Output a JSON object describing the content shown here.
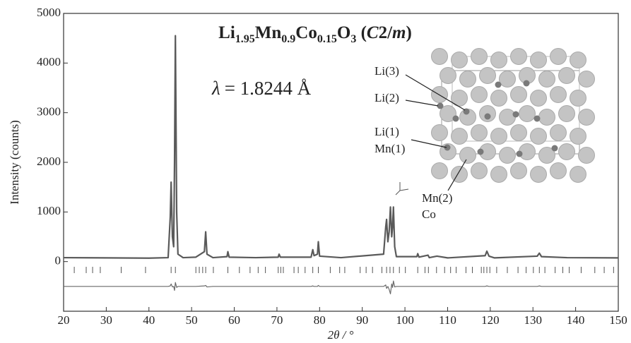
{
  "chart_data": {
    "type": "line",
    "title": [
      {
        "text": "Li"
      },
      {
        "text": "1.95",
        "style": "sub"
      },
      {
        "text": "Mn"
      },
      {
        "text": "0.9",
        "style": "sub"
      },
      {
        "text": "Co"
      },
      {
        "text": "0.15",
        "style": "sub"
      },
      {
        "text": "O"
      },
      {
        "text": "3",
        "style": "sub"
      },
      {
        "text": " ("
      },
      {
        "text": "C",
        "style": "italic"
      },
      {
        "text": "2/"
      },
      {
        "text": "m",
        "style": "italic"
      },
      {
        "text": ")"
      }
    ],
    "wavelength": {
      "symbol": "λ",
      "text": "= 1.8244 Å"
    },
    "site_labels": [
      "Li(3)",
      "Li(2)",
      "Li(1)",
      "Mn(1)",
      "Mn(2)",
      "Co"
    ],
    "x_label": "2θ / °",
    "y_label": "Intensity (counts)",
    "x": [
      20,
      30,
      40,
      44.5,
      45,
      45.2,
      45.5,
      45.8,
      46,
      46.2,
      46.5,
      46.8,
      48,
      51,
      53,
      53.3,
      53.6,
      55,
      58.3,
      58.5,
      58.8,
      65,
      70.3,
      70.5,
      70.8,
      78,
      78.4,
      78.7,
      79.5,
      79.7,
      80,
      85,
      95,
      95.5,
      95.7,
      96,
      96.3,
      96.6,
      96.9,
      97.1,
      97.3,
      97.6,
      98,
      102.8,
      103,
      103.3,
      105.4,
      105.7,
      107.5,
      110,
      118.8,
      119.2,
      119.7,
      121,
      131,
      131.5,
      132,
      138,
      150
    ],
    "series": [
      {
        "color": "#5a5a5a",
        "values": [
          80,
          75,
          70,
          80,
          900,
          1600,
          500,
          300,
          2000,
          4550,
          1000,
          150,
          80,
          90,
          200,
          600,
          150,
          80,
          100,
          200,
          90,
          80,
          90,
          150,
          90,
          90,
          240,
          120,
          150,
          400,
          110,
          80,
          150,
          700,
          850,
          400,
          600,
          1100,
          500,
          700,
          1100,
          300,
          100,
          100,
          160,
          90,
          130,
          80,
          110,
          75,
          120,
          210,
          110,
          75,
          110,
          170,
          100,
          80,
          75
        ]
      },
      {
        "color": "#6a6a6a",
        "values": [
          -500,
          -500,
          -500,
          -500,
          -490,
          -450,
          -510,
          -500,
          -580,
          -420,
          -520,
          -500,
          -500,
          -500,
          -490,
          -480,
          -510,
          -500,
          -500,
          -500,
          -500,
          -500,
          -500,
          -500,
          -500,
          -500,
          -490,
          -500,
          -500,
          -480,
          -500,
          -500,
          -500,
          -470,
          -540,
          -500,
          -560,
          -650,
          -450,
          -520,
          -390,
          -510,
          -500,
          -500,
          -500,
          -500,
          -500,
          -500,
          -500,
          -500,
          -500,
          -490,
          -500,
          -500,
          -500,
          -490,
          -500,
          -500,
          -500
        ]
      }
    ],
    "bragg_positions": [
      22.5,
      25.3,
      26.8,
      28.6,
      33.5,
      39.2,
      45.2,
      46.2,
      51,
      51.8,
      52.6,
      53.3,
      55.1,
      58.5,
      61.2,
      63.7,
      65.6,
      67.3,
      70.3,
      70.9,
      71.5,
      74,
      75,
      76.6,
      78.4,
      79.7,
      82.5,
      84.7,
      85.9,
      89.5,
      90.9,
      92.4,
      94.6,
      95.7,
      96.5,
      97.3,
      98.7,
      100.1,
      103,
      104.7,
      105.5,
      107.4,
      109.3,
      110.7,
      112,
      114.3,
      115.8,
      117.9,
      118.5,
      119.2,
      119.9,
      121.5,
      124,
      126.5,
      128.4,
      130.1,
      131.5,
      132.8,
      135.2,
      137,
      138.5,
      141.3,
      144.5,
      146.7,
      148.9
    ],
    "bragg_color": "#555555",
    "xlim": [
      20,
      150
    ],
    "ylim": [
      -1000,
      5000
    ],
    "xticks": [
      20,
      30,
      40,
      50,
      60,
      70,
      80,
      90,
      100,
      110,
      120,
      130,
      140,
      150
    ],
    "yticks": [
      0,
      1000,
      2000,
      3000,
      4000,
      5000
    ]
  }
}
